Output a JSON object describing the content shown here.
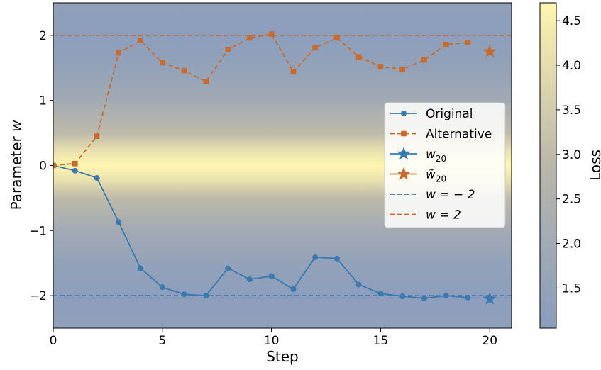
{
  "chart_data": {
    "type": "line",
    "title": "",
    "xlabel": "Step",
    "ylabel_prefix": "Parameter ",
    "ylabel_var": "w",
    "xlim": [
      0,
      21
    ],
    "ylim": [
      -2.5,
      2.5
    ],
    "xticks": [
      0,
      5,
      10,
      15,
      20
    ],
    "xtick_labels": [
      "0",
      "5",
      "10",
      "15",
      "20"
    ],
    "yticks": [
      -2,
      -1,
      0,
      1,
      2
    ],
    "ytick_labels": [
      "−2",
      "−1",
      "0",
      "1",
      "2"
    ],
    "grid": false,
    "legend_position": "center-right",
    "series": [
      {
        "name": "Original",
        "style": "solid",
        "marker": "circle",
        "color": "#3a78b0",
        "x": [
          0,
          1,
          2,
          3,
          4,
          5,
          6,
          7,
          8,
          9,
          10,
          11,
          12,
          13,
          14,
          15,
          16,
          17,
          18,
          19
        ],
        "y": [
          0.0,
          -0.08,
          -0.19,
          -0.87,
          -1.58,
          -1.87,
          -1.98,
          -2.0,
          -1.58,
          -1.75,
          -1.7,
          -1.9,
          -1.41,
          -1.43,
          -1.83,
          -1.97,
          -2.01,
          -2.04,
          -2.0,
          -2.03
        ]
      },
      {
        "name": "Alternative",
        "style": "dashed",
        "marker": "square",
        "color": "#c96a2b",
        "x": [
          0,
          1,
          2,
          3,
          4,
          5,
          6,
          7,
          8,
          9,
          10,
          11,
          12,
          13,
          14,
          15,
          16,
          17,
          18,
          19
        ],
        "y": [
          0.0,
          0.03,
          0.45,
          1.73,
          1.92,
          1.58,
          1.46,
          1.29,
          1.78,
          1.96,
          2.02,
          1.44,
          1.81,
          1.96,
          1.67,
          1.52,
          1.48,
          1.62,
          1.86,
          1.89
        ]
      }
    ],
    "final_points": [
      {
        "legend_label": "w",
        "legend_sub": "20",
        "x": 20,
        "y": -2.05,
        "color": "#3a78b0",
        "marker": "star"
      },
      {
        "legend_label": "w̃",
        "legend_sub": "20",
        "x": 20,
        "y": 1.75,
        "color": "#c96a2b",
        "marker": "star"
      }
    ],
    "reference_lines": [
      {
        "legend_label": "w = − 2",
        "y": -2,
        "color": "#3a78b0",
        "style": "dashed"
      },
      {
        "legend_label": "w = 2",
        "y": 2,
        "color": "#c96a2b",
        "style": "dashed"
      }
    ],
    "background": {
      "description": "loss landscape shading along y",
      "stops": [
        {
          "y": 2.5,
          "loss": 1.3
        },
        {
          "y": 2.0,
          "loss": 1.15
        },
        {
          "y": 1.5,
          "loss": 1.4
        },
        {
          "y": 1.0,
          "loss": 2.0
        },
        {
          "y": 0.5,
          "loss": 3.0
        },
        {
          "y": 0.2,
          "loss": 4.2
        },
        {
          "y": 0.0,
          "loss": 4.7
        },
        {
          "y": -0.2,
          "loss": 4.2
        },
        {
          "y": -0.5,
          "loss": 3.0
        },
        {
          "y": -1.0,
          "loss": 2.0
        },
        {
          "y": -1.5,
          "loss": 1.4
        },
        {
          "y": -2.0,
          "loss": 1.15
        },
        {
          "y": -2.5,
          "loss": 1.3
        }
      ]
    },
    "colorbar": {
      "label": "Loss",
      "range": [
        1.05,
        4.7
      ],
      "ticks": [
        1.5,
        2.0,
        2.5,
        3.0,
        3.5,
        4.0,
        4.5
      ],
      "tick_labels": [
        "1.5",
        "2.0",
        "2.5",
        "3.0",
        "3.5",
        "4.0",
        "4.5"
      ],
      "color_low": "#8a9dbd",
      "color_mid": "#b9b6aa",
      "color_high": "#fff5b0"
    }
  }
}
